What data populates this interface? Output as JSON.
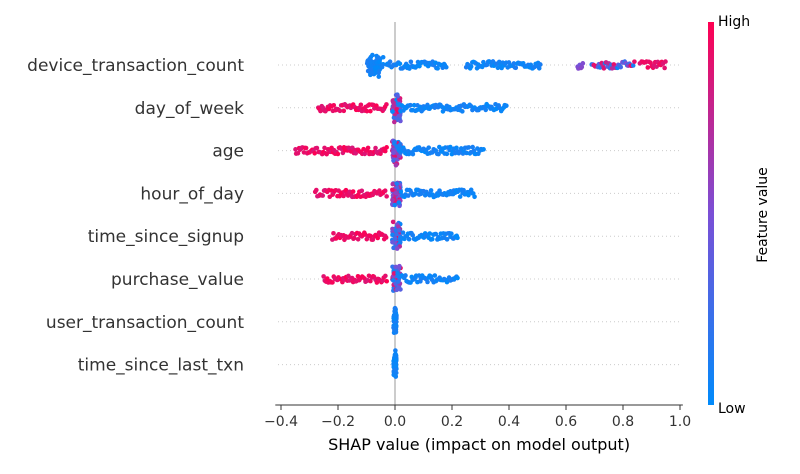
{
  "chart_data": {
    "type": "scatter",
    "subtype": "shap_beeswarm_summary",
    "xlabel": "SHAP value (impact on model output)",
    "xlim": [
      -0.42,
      1.01
    ],
    "x_ticks": [
      -0.4,
      -0.2,
      0.0,
      0.2,
      0.4,
      0.6,
      0.8,
      1.0
    ],
    "x_tick_labels": [
      "−0.4",
      "−0.2",
      "0.0",
      "0.2",
      "0.4",
      "0.6",
      "0.8",
      "1.0"
    ],
    "grid": false,
    "colorbar": {
      "title": "Feature value",
      "high_label": "High",
      "low_label": "Low",
      "high_color": "#ff0052",
      "mid_color": "#7b4fd6",
      "low_color": "#008bfb",
      "placement": "right"
    },
    "features": [
      {
        "name": "device_transaction_count",
        "segments": [
          {
            "x_min": -0.1,
            "x_max": -0.04,
            "value": "low",
            "cluster": true
          },
          {
            "x_min": -0.03,
            "x_max": 0.18,
            "value": "low"
          },
          {
            "x_min": 0.25,
            "x_max": 0.51,
            "value": "low"
          },
          {
            "x_min": 0.64,
            "x_max": 0.66,
            "value": "mid"
          },
          {
            "x_min": 0.69,
            "x_max": 0.84,
            "value": "mixed"
          },
          {
            "x_min": 0.86,
            "x_max": 0.95,
            "value": "high"
          }
        ]
      },
      {
        "name": "day_of_week",
        "segments": [
          {
            "x_min": -0.27,
            "x_max": -0.03,
            "value": "high"
          },
          {
            "x_min": -0.01,
            "x_max": 0.02,
            "value": "mixed",
            "cluster": true
          },
          {
            "x_min": 0.02,
            "x_max": 0.39,
            "value": "low"
          }
        ]
      },
      {
        "name": "age",
        "segments": [
          {
            "x_min": -0.35,
            "x_max": -0.03,
            "value": "high"
          },
          {
            "x_min": -0.01,
            "x_max": 0.02,
            "value": "mixed",
            "cluster": true
          },
          {
            "x_min": 0.02,
            "x_max": 0.31,
            "value": "low"
          }
        ]
      },
      {
        "name": "hour_of_day",
        "segments": [
          {
            "x_min": -0.28,
            "x_max": -0.03,
            "value": "high"
          },
          {
            "x_min": -0.01,
            "x_max": 0.02,
            "value": "mixed",
            "cluster": true
          },
          {
            "x_min": 0.02,
            "x_max": 0.28,
            "value": "low"
          }
        ]
      },
      {
        "name": "time_since_signup",
        "segments": [
          {
            "x_min": -0.22,
            "x_max": -0.03,
            "value": "high"
          },
          {
            "x_min": -0.01,
            "x_max": 0.02,
            "value": "mixed",
            "cluster": true
          },
          {
            "x_min": 0.02,
            "x_max": 0.22,
            "value": "low"
          }
        ]
      },
      {
        "name": "purchase_value",
        "segments": [
          {
            "x_min": -0.25,
            "x_max": -0.03,
            "value": "high"
          },
          {
            "x_min": -0.01,
            "x_max": 0.02,
            "value": "mixed",
            "cluster": true
          },
          {
            "x_min": 0.02,
            "x_max": 0.22,
            "value": "low"
          }
        ]
      },
      {
        "name": "user_transaction_count",
        "segments": [
          {
            "x_min": -0.005,
            "x_max": 0.005,
            "value": "low",
            "cluster": true
          }
        ]
      },
      {
        "name": "time_since_last_txn",
        "segments": [
          {
            "x_min": -0.005,
            "x_max": 0.005,
            "value": "low",
            "cluster": true
          }
        ]
      }
    ]
  }
}
